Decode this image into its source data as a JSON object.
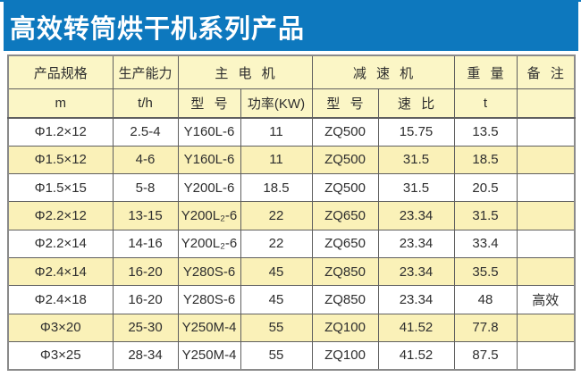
{
  "title": "高效转筒烘干机系列产品",
  "colors": {
    "title_bg": "#0d78be",
    "header_bg": "#fbf6c6",
    "row_bg": "#ffffff",
    "row_alt_bg": "#faf1b8",
    "border_inner": "#5f5f5f",
    "border_outer": "#8a8a8a",
    "title_text": "#ffffff"
  },
  "table": {
    "header_row1": [
      {
        "label": "产品规格",
        "colspan": 1
      },
      {
        "label": "生产能力",
        "colspan": 1
      },
      {
        "label": "主 电 机",
        "colspan": 2
      },
      {
        "label": "减 速 机",
        "colspan": 2
      },
      {
        "label": "重 量",
        "colspan": 1
      },
      {
        "label": "备 注",
        "colspan": 1
      }
    ],
    "header_row2": [
      "m",
      "t/h",
      "型 号",
      "功率(KW)",
      "型 号",
      "速 比",
      "t",
      ""
    ],
    "rows": [
      [
        "Φ1.2×12",
        "2.5-4",
        "Y160L-6",
        "11",
        "ZQ500",
        "15.75",
        "13.5",
        ""
      ],
      [
        "Φ1.5×12",
        "4-6",
        "Y160L-6",
        "11",
        "ZQ500",
        "31.5",
        "18.5",
        ""
      ],
      [
        "Φ1.5×15",
        "5-8",
        "Y200L-6",
        "18.5",
        "ZQ500",
        "31.5",
        "20.5",
        ""
      ],
      [
        "Φ2.2×12",
        "13-15",
        "Y200L₂-6",
        "22",
        "ZQ650",
        "23.34",
        "31.5",
        ""
      ],
      [
        "Φ2.2×14",
        "14-16",
        "Y200L₂-6",
        "22",
        "ZQ650",
        "23.34",
        "33.4",
        ""
      ],
      [
        "Φ2.4×14",
        "16-20",
        "Y280S-6",
        "45",
        "ZQ850",
        "23.34",
        "35.5",
        ""
      ],
      [
        "Φ2.4×18",
        "16-20",
        "Y280S-6",
        "45",
        "ZQ850",
        "23.34",
        "48",
        "高效"
      ],
      [
        "Φ3×20",
        "25-30",
        "Y250M-4",
        "55",
        "ZQ100",
        "41.52",
        "77.8",
        ""
      ],
      [
        "Φ3×25",
        "28-34",
        "Y250M-4",
        "55",
        "ZQ100",
        "41.52",
        "87.5",
        ""
      ]
    ]
  }
}
